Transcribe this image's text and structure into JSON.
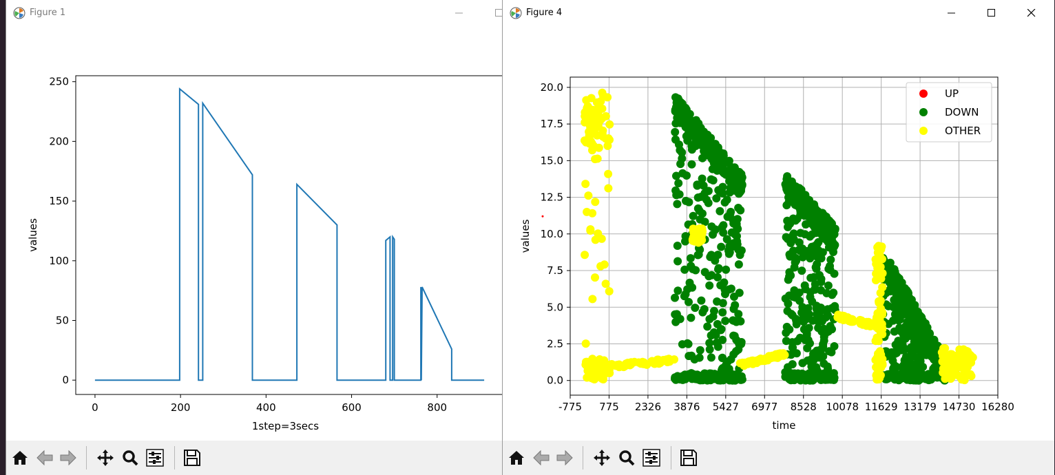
{
  "windows": {
    "fig1": {
      "title": "Figure 1"
    },
    "fig4": {
      "title": "Figure 4"
    }
  },
  "icons": {
    "app": "matplotlib-icon",
    "toolbar": [
      "home-icon",
      "back-icon",
      "forward-icon",
      "pan-icon",
      "zoom-icon",
      "configure-icon",
      "save-icon"
    ]
  },
  "chart_data": [
    {
      "type": "line",
      "xlabel": "1step=3secs",
      "ylabel": "values",
      "xticks": [
        0,
        200,
        400,
        600,
        800
      ],
      "yticks": [
        0,
        50,
        100,
        150,
        200,
        250
      ],
      "xlim": [
        -45,
        955
      ],
      "ylim": [
        -12,
        255
      ],
      "grid": false,
      "color": "#1f77b4",
      "series": [
        {
          "x": [
            0,
            198,
            198,
            242,
            242,
            252,
            252,
            368,
            368,
            472,
            472,
            566,
            566,
            680,
            680,
            690,
            690,
            696,
            696,
            700,
            700,
            762,
            762,
            763,
            763,
            765,
            765,
            834,
            834,
            910
          ],
          "y": [
            0,
            0,
            244,
            231,
            0,
            0,
            232,
            172,
            0,
            0,
            164,
            130,
            0,
            0,
            117,
            120,
            0,
            0,
            120,
            118,
            0,
            0,
            78,
            0,
            0,
            78,
            78,
            26,
            0,
            0
          ]
        }
      ]
    },
    {
      "type": "scatter",
      "xlabel": "time",
      "ylabel": "values",
      "xticks": [
        "-775",
        "775",
        "2326",
        "3876",
        "5427",
        "6977",
        "8528",
        "10078",
        "11629",
        "13179",
        "14730",
        "16280"
      ],
      "yticks": [
        "0.0",
        "2.5",
        "5.0",
        "7.5",
        "10.0",
        "12.5",
        "15.0",
        "17.5",
        "20.0"
      ],
      "xlim": [
        -775,
        16280
      ],
      "ylim": [
        -1.0,
        20.7
      ],
      "grid": true,
      "legend": "top-right",
      "series": [
        {
          "name": "UP",
          "color": "#ff0000"
        },
        {
          "name": "DOWN",
          "color": "#008000"
        },
        {
          "name": "OTHER",
          "color": "#ffff00"
        }
      ],
      "clusters": {
        "OTHER": [
          {
            "x": [
              -200,
              800
            ],
            "y": [
              -0.2,
              19.8
            ]
          },
          {
            "x": [
              -200,
              3400
            ],
            "y": [
              0.8,
              1.4
            ]
          },
          {
            "x": [
              5900,
              7800
            ],
            "y": [
              1.0,
              1.8
            ]
          },
          {
            "x": [
              9800,
              11700
            ],
            "y": [
              3.6,
              4.4
            ]
          },
          {
            "x": [
              11400,
              11700
            ],
            "y": [
              0.0,
              9.5
            ]
          },
          {
            "x": [
              14000,
              15300
            ],
            "y": [
              0.0,
              2.2
            ]
          },
          {
            "x": [
              4100,
              4500
            ],
            "y": [
              9.4,
              10.4
            ]
          }
        ],
        "DOWN": [
          {
            "x": [
              3400,
              6100
            ],
            "y_top": [
              19.5,
              14.0
            ]
          },
          {
            "x": [
              7800,
              9800
            ],
            "y_top": [
              14.2,
              10.5
            ]
          },
          {
            "x": [
              11700,
              14200
            ],
            "y_top": [
              9.0,
              1.5
            ]
          }
        ]
      }
    }
  ]
}
